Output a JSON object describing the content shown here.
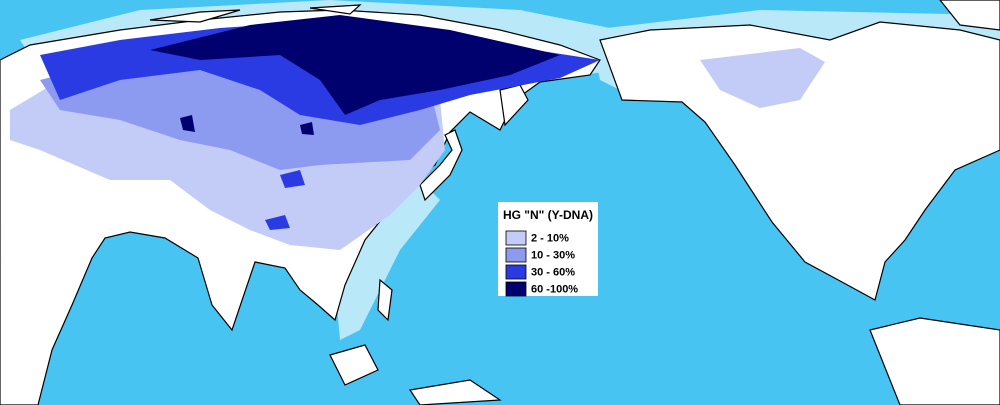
{
  "legend": {
    "title": "HG \"N\" (Y-DNA)",
    "items": [
      {
        "label": "2  - 10%",
        "color": "#c3cbf7"
      },
      {
        "label": "10 - 30%",
        "color": "#8c9bf0"
      },
      {
        "label": "30 - 60%",
        "color": "#2b3be3"
      },
      {
        "label": "60 -100%",
        "color": "#00006e"
      }
    ]
  }
}
